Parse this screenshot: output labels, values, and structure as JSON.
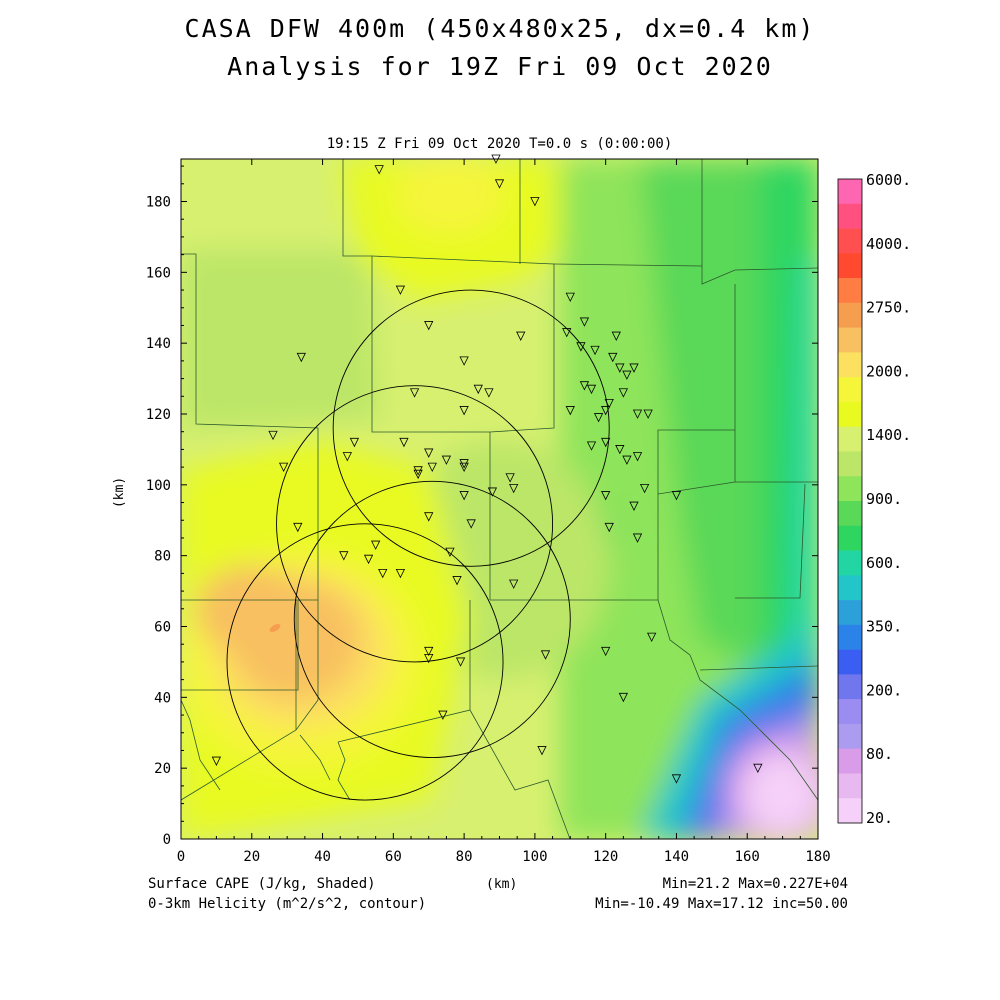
{
  "header": {
    "title_line1": "CASA DFW 400m (450x480x25, dx=0.4 km)",
    "title_line2": "Analysis for 19Z Fri 09 Oct 2020",
    "subtitle": "19:15 Z Fri 09 Oct 2020    T=0.0 s (0:00:00)"
  },
  "axes": {
    "x_label": "(km)",
    "y_label": "(km)",
    "x_ticks": [
      "0",
      "20",
      "40",
      "60",
      "80",
      "100",
      "120",
      "140",
      "160",
      "180"
    ],
    "y_ticks": [
      "0",
      "20",
      "40",
      "60",
      "80",
      "100",
      "120",
      "140",
      "160",
      "180"
    ],
    "x_range": [
      0,
      180
    ],
    "y_range": [
      0,
      192
    ]
  },
  "colorbar": {
    "labels": [
      "6000.",
      "4000.",
      "2750.",
      "2000.",
      "1400.",
      "900.",
      "600.",
      "350.",
      "200.",
      "80.",
      "20."
    ],
    "colors": [
      "#ff66b2",
      "#ff5080",
      "#ff4f50",
      "#ff4a30",
      "#ff7d42",
      "#f59e50",
      "#f8c060",
      "#fce060",
      "#f5f53a",
      "#e8fa20",
      "#d8f070",
      "#bce668",
      "#8ee45a",
      "#5ad858",
      "#2ed660",
      "#22d6a4",
      "#23c6c8",
      "#2ca0d8",
      "#2b82e8",
      "#3a5ef2",
      "#6f76ee",
      "#9a8cf0",
      "#ac9cf0",
      "#d89ce8",
      "#e8b8f0",
      "#f5d0f8"
    ]
  },
  "footer": {
    "left_line1": "Surface CAPE (J/kg, Shaded)",
    "left_line2": "0-3km Helicity (m^2/s^2, contour)",
    "right_line1": "Min=21.2 Max=0.227E+04",
    "right_line2": "Min=-10.49 Max=17.12 inc=50.00"
  },
  "radar_rings_km": [
    {
      "cx": 82,
      "cy": 116,
      "r": 39
    },
    {
      "cx": 66,
      "cy": 89,
      "r": 39
    },
    {
      "cx": 52,
      "cy": 50,
      "r": 39
    },
    {
      "cx": 71,
      "cy": 62,
      "r": 39
    }
  ],
  "stations_km": [
    [
      56,
      189
    ],
    [
      89,
      192
    ],
    [
      90,
      185
    ],
    [
      100,
      180
    ],
    [
      62,
      155
    ],
    [
      34,
      136
    ],
    [
      70,
      145
    ],
    [
      96,
      142
    ],
    [
      80,
      135
    ],
    [
      110,
      153
    ],
    [
      114,
      146
    ],
    [
      109,
      143
    ],
    [
      117,
      138
    ],
    [
      113,
      139
    ],
    [
      123,
      142
    ],
    [
      122,
      136
    ],
    [
      124,
      133
    ],
    [
      128,
      133
    ],
    [
      126,
      131
    ],
    [
      66,
      126
    ],
    [
      84,
      127
    ],
    [
      87,
      126
    ],
    [
      80,
      121
    ],
    [
      114,
      128
    ],
    [
      116,
      127
    ],
    [
      110,
      121
    ],
    [
      118,
      119
    ],
    [
      120,
      121
    ],
    [
      121,
      123
    ],
    [
      125,
      126
    ],
    [
      129,
      120
    ],
    [
      132,
      120
    ],
    [
      26,
      114
    ],
    [
      49,
      112
    ],
    [
      63,
      112
    ],
    [
      70,
      109
    ],
    [
      75,
      107
    ],
    [
      71,
      105
    ],
    [
      80,
      106
    ],
    [
      80,
      105
    ],
    [
      67,
      104
    ],
    [
      67,
      103
    ],
    [
      29,
      105
    ],
    [
      47,
      108
    ],
    [
      116,
      111
    ],
    [
      120,
      112
    ],
    [
      124,
      110
    ],
    [
      126,
      107
    ],
    [
      129,
      108
    ],
    [
      93,
      102
    ],
    [
      94,
      99
    ],
    [
      88,
      98
    ],
    [
      80,
      97
    ],
    [
      120,
      97
    ],
    [
      131,
      99
    ],
    [
      140,
      97
    ],
    [
      128,
      94
    ],
    [
      70,
      91
    ],
    [
      82,
      89
    ],
    [
      121,
      88
    ],
    [
      129,
      85
    ],
    [
      33,
      88
    ],
    [
      55,
      83
    ],
    [
      46,
      80
    ],
    [
      53,
      79
    ],
    [
      57,
      75
    ],
    [
      62,
      75
    ],
    [
      76,
      81
    ],
    [
      78,
      73
    ],
    [
      94,
      72
    ],
    [
      70,
      53
    ],
    [
      70,
      51
    ],
    [
      79,
      50
    ],
    [
      103,
      52
    ],
    [
      120,
      53
    ],
    [
      133,
      57
    ],
    [
      125,
      40
    ],
    [
      74,
      35
    ],
    [
      10,
      22
    ],
    [
      102,
      25
    ],
    [
      140,
      17
    ],
    [
      163,
      20
    ]
  ]
}
